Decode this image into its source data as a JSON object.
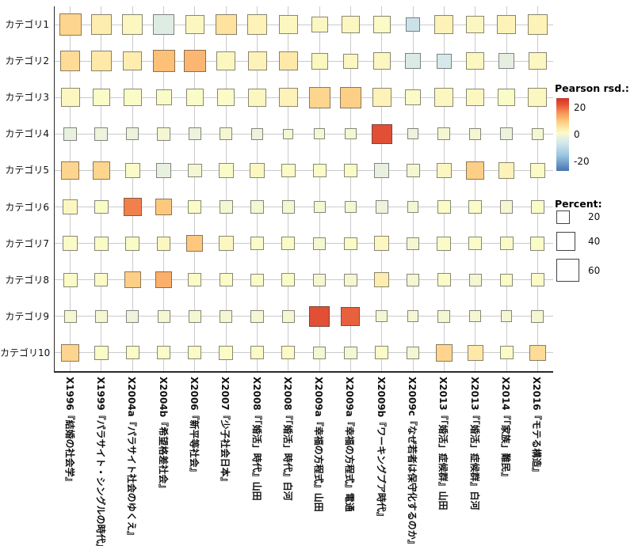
{
  "chart_data": {
    "type": "heatmap",
    "subtype": "balloon-plot",
    "rows": [
      "カテゴリ1",
      "カテゴリ2",
      "カテゴリ3",
      "カテゴリ4",
      "カテゴリ5",
      "カテゴリ6",
      "カテゴリ7",
      "カテゴリ8",
      "カテゴリ9",
      "カテゴリ10"
    ],
    "columns": [
      "X1996『結婚の社会学』",
      "X1999『パラサイト・シングルの時代』",
      "X2004a『パラサイト社会のゆくえ』",
      "X2004b『希望格差社会』",
      "X2006『新平等社会』",
      "X2007『少子社会日本』",
      "X2008『「婚活」時代』山田",
      "X2008『「婚活」時代』白河",
      "X2009a『幸福の方程式』山田",
      "X2009a『幸福の方程式』電通",
      "X2009b『ワーキングプア時代』",
      "X2009c『なぜ若者は保守化するのか』",
      "X2013『「婚活」症候群』山田",
      "X2013『「婚活」症候群』白河",
      "X2014『「家族」難民』",
      "X2016『モテる構造』"
    ],
    "cells_encoding": "[percent, pearson_residual]",
    "cells": [
      [
        [
          55,
          8
        ],
        [
          50,
          4
        ],
        [
          48,
          2
        ],
        [
          48,
          -4
        ],
        [
          40,
          2
        ],
        [
          50,
          6
        ],
        [
          45,
          3
        ],
        [
          38,
          2
        ],
        [
          30,
          2
        ],
        [
          35,
          2
        ],
        [
          35,
          1
        ],
        [
          22,
          -8
        ],
        [
          40,
          3
        ],
        [
          35,
          2
        ],
        [
          40,
          3
        ],
        [
          45,
          3
        ]
      ],
      [
        [
          45,
          7
        ],
        [
          45,
          5
        ],
        [
          40,
          4
        ],
        [
          55,
          11
        ],
        [
          55,
          12
        ],
        [
          40,
          2
        ],
        [
          40,
          3
        ],
        [
          42,
          5
        ],
        [
          30,
          2
        ],
        [
          25,
          2
        ],
        [
          35,
          2
        ],
        [
          28,
          -5
        ],
        [
          25,
          -6
        ],
        [
          35,
          2
        ],
        [
          28,
          -3
        ],
        [
          35,
          2
        ]
      ],
      [
        [
          40,
          2
        ],
        [
          35,
          1
        ],
        [
          35,
          1
        ],
        [
          28,
          1
        ],
        [
          35,
          1
        ],
        [
          35,
          1
        ],
        [
          38,
          2
        ],
        [
          40,
          3
        ],
        [
          50,
          8
        ],
        [
          50,
          9
        ],
        [
          40,
          3
        ],
        [
          28,
          1
        ],
        [
          40,
          2
        ],
        [
          35,
          2
        ],
        [
          35,
          1
        ],
        [
          40,
          2
        ]
      ],
      [
        [
          20,
          -2
        ],
        [
          20,
          -1
        ],
        [
          18,
          -1
        ],
        [
          20,
          0
        ],
        [
          18,
          -1
        ],
        [
          18,
          0
        ],
        [
          15,
          -1
        ],
        [
          12,
          0
        ],
        [
          14,
          0
        ],
        [
          14,
          0
        ],
        [
          45,
          23
        ],
        [
          14,
          -1
        ],
        [
          18,
          0
        ],
        [
          15,
          0
        ],
        [
          18,
          -1
        ],
        [
          15,
          0
        ]
      ],
      [
        [
          35,
          8
        ],
        [
          35,
          8
        ],
        [
          25,
          1
        ],
        [
          25,
          -2
        ],
        [
          22,
          0
        ],
        [
          25,
          1
        ],
        [
          25,
          2
        ],
        [
          22,
          1
        ],
        [
          20,
          1
        ],
        [
          20,
          1
        ],
        [
          25,
          -2
        ],
        [
          20,
          0
        ],
        [
          25,
          2
        ],
        [
          35,
          9
        ],
        [
          30,
          3
        ],
        [
          25,
          1
        ]
      ],
      [
        [
          25,
          2
        ],
        [
          22,
          1
        ],
        [
          35,
          18
        ],
        [
          32,
          10
        ],
        [
          20,
          1
        ],
        [
          20,
          0
        ],
        [
          18,
          0
        ],
        [
          18,
          0
        ],
        [
          15,
          0
        ],
        [
          15,
          0
        ],
        [
          18,
          -1
        ],
        [
          15,
          0
        ],
        [
          20,
          1
        ],
        [
          20,
          1
        ],
        [
          18,
          0
        ],
        [
          20,
          1
        ]
      ],
      [
        [
          25,
          1
        ],
        [
          22,
          1
        ],
        [
          22,
          1
        ],
        [
          22,
          2
        ],
        [
          30,
          10
        ],
        [
          25,
          2
        ],
        [
          20,
          1
        ],
        [
          20,
          1
        ],
        [
          18,
          0
        ],
        [
          18,
          1
        ],
        [
          25,
          2
        ],
        [
          18,
          0
        ],
        [
          22,
          1
        ],
        [
          20,
          1
        ],
        [
          20,
          1
        ],
        [
          22,
          1
        ]
      ],
      [
        [
          22,
          1
        ],
        [
          20,
          1
        ],
        [
          30,
          9
        ],
        [
          30,
          13
        ],
        [
          20,
          1
        ],
        [
          20,
          1
        ],
        [
          18,
          1
        ],
        [
          20,
          1
        ],
        [
          18,
          0
        ],
        [
          18,
          0
        ],
        [
          25,
          4
        ],
        [
          18,
          0
        ],
        [
          20,
          1
        ],
        [
          18,
          0
        ],
        [
          18,
          1
        ],
        [
          20,
          1
        ]
      ],
      [
        [
          18,
          0
        ],
        [
          18,
          0
        ],
        [
          18,
          -1
        ],
        [
          18,
          0
        ],
        [
          18,
          0
        ],
        [
          18,
          0
        ],
        [
          18,
          0
        ],
        [
          18,
          0
        ],
        [
          45,
          23
        ],
        [
          40,
          21
        ],
        [
          15,
          0
        ],
        [
          15,
          0
        ],
        [
          18,
          0
        ],
        [
          15,
          0
        ],
        [
          15,
          0
        ],
        [
          18,
          0
        ]
      ],
      [
        [
          35,
          8
        ],
        [
          22,
          1
        ],
        [
          20,
          1
        ],
        [
          20,
          1
        ],
        [
          20,
          1
        ],
        [
          22,
          1
        ],
        [
          20,
          1
        ],
        [
          20,
          1
        ],
        [
          18,
          0
        ],
        [
          18,
          0
        ],
        [
          20,
          1
        ],
        [
          18,
          0
        ],
        [
          32,
          8
        ],
        [
          28,
          5
        ],
        [
          20,
          1
        ],
        [
          30,
          7
        ]
      ]
    ],
    "color_legend": {
      "title": "Pearson rsd.:",
      "ticks": [
        20,
        0,
        -20
      ],
      "range": [
        -27,
        27
      ]
    },
    "size_legend": {
      "title": "Percent:",
      "values": [
        20,
        40,
        60
      ]
    },
    "color_scale_stops": [
      [
        -27,
        "#4575b4"
      ],
      [
        -15,
        "#9ec8e2"
      ],
      [
        -6,
        "#d6e8ea"
      ],
      [
        -1,
        "#edf3dc"
      ],
      [
        1,
        "#fbfbc8"
      ],
      [
        5,
        "#fee9a8"
      ],
      [
        10,
        "#fdc87d"
      ],
      [
        16,
        "#f89558"
      ],
      [
        22,
        "#e65538"
      ],
      [
        27,
        "#cf3527"
      ]
    ],
    "layout": {
      "grid": true,
      "legend_position": "right"
    }
  }
}
